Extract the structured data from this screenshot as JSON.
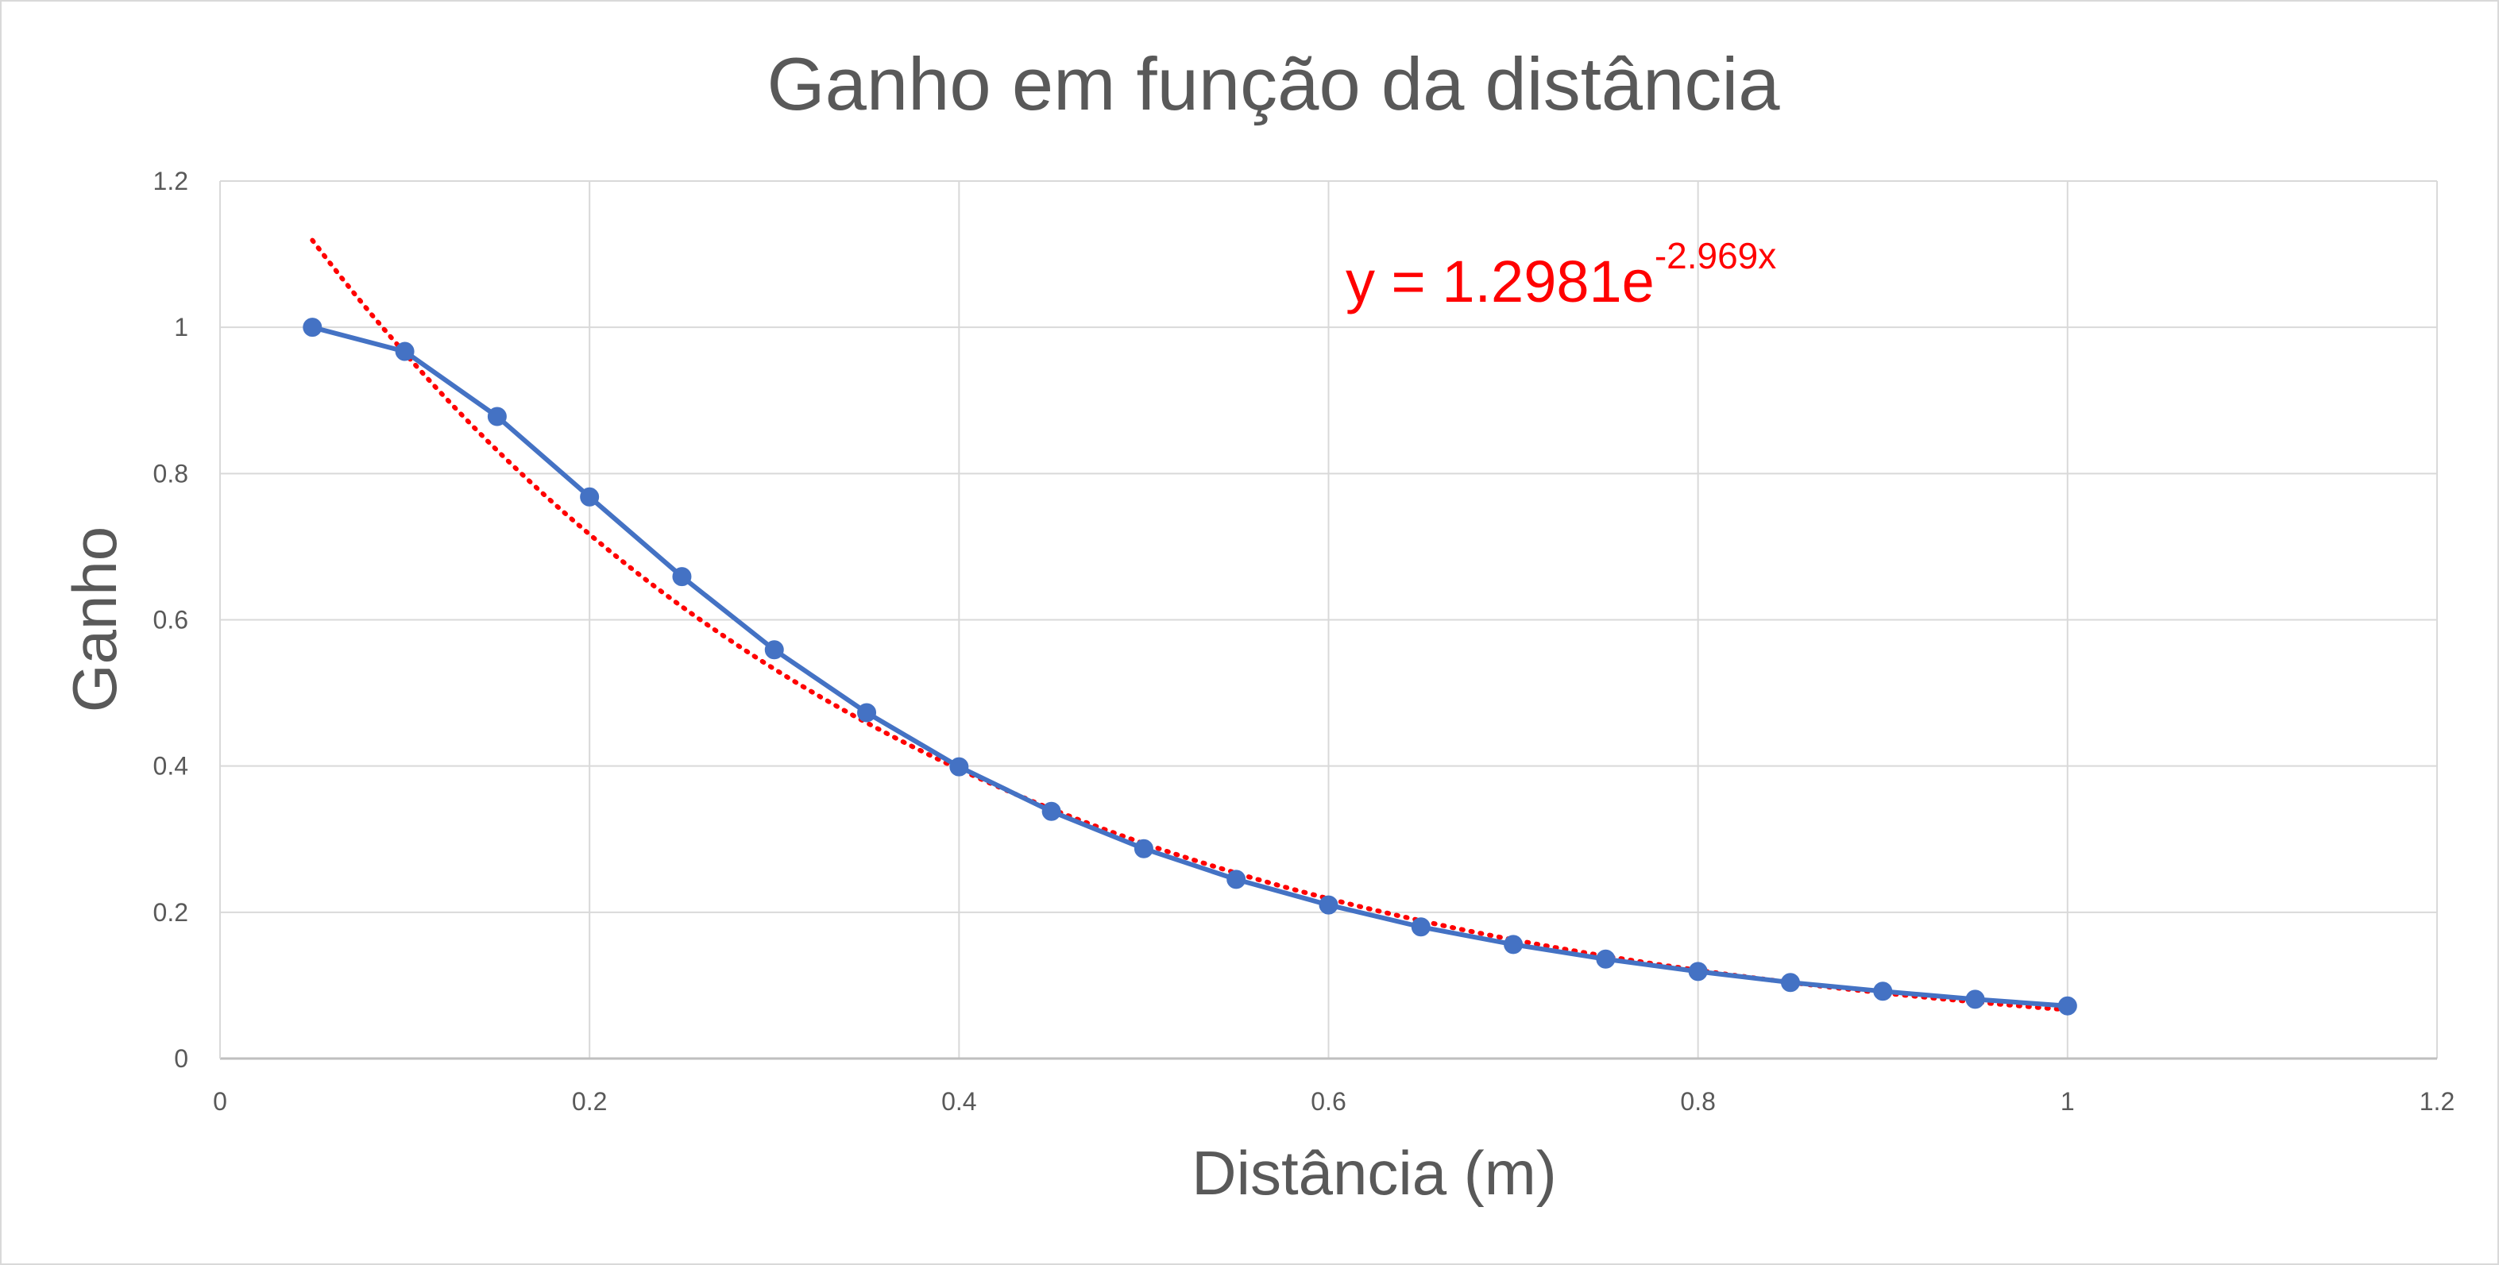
{
  "chart_data": {
    "type": "line",
    "title": "Ganho em função da distância",
    "xlabel": "Distância (m)",
    "ylabel": "Ganho",
    "xlim": [
      0,
      1.2
    ],
    "ylim": [
      0,
      1.2
    ],
    "x_ticks": [
      "0",
      "0.2",
      "0.4",
      "0.6",
      "0.8",
      "1",
      "1.2"
    ],
    "y_ticks": [
      "0",
      "0.2",
      "0.4",
      "0.6",
      "0.8",
      "1",
      "1.2"
    ],
    "grid": true,
    "legend": "none",
    "series": [
      {
        "color": "#4472c4",
        "marker": "circle",
        "x": [
          0.05,
          0.1,
          0.15,
          0.2,
          0.25,
          0.3,
          0.35,
          0.4,
          0.45,
          0.5,
          0.55,
          0.6,
          0.65,
          0.7,
          0.75,
          0.8,
          0.85,
          0.9,
          0.95,
          1.0
        ],
        "y": [
          1.0,
          0.967,
          0.878,
          0.768,
          0.659,
          0.559,
          0.473,
          0.399,
          0.338,
          0.287,
          0.245,
          0.21,
          0.18,
          0.156,
          0.136,
          0.119,
          0.104,
          0.092,
          0.081,
          0.072
        ]
      }
    ],
    "trendline": {
      "type": "exponential",
      "a": 1.2981,
      "b": -2.969,
      "x_range": [
        0.05,
        1.0
      ],
      "color": "#ff0000",
      "style": "dotted",
      "equation": {
        "prefix": "y = 1.2981e",
        "exponent": "-2.969x"
      }
    }
  }
}
